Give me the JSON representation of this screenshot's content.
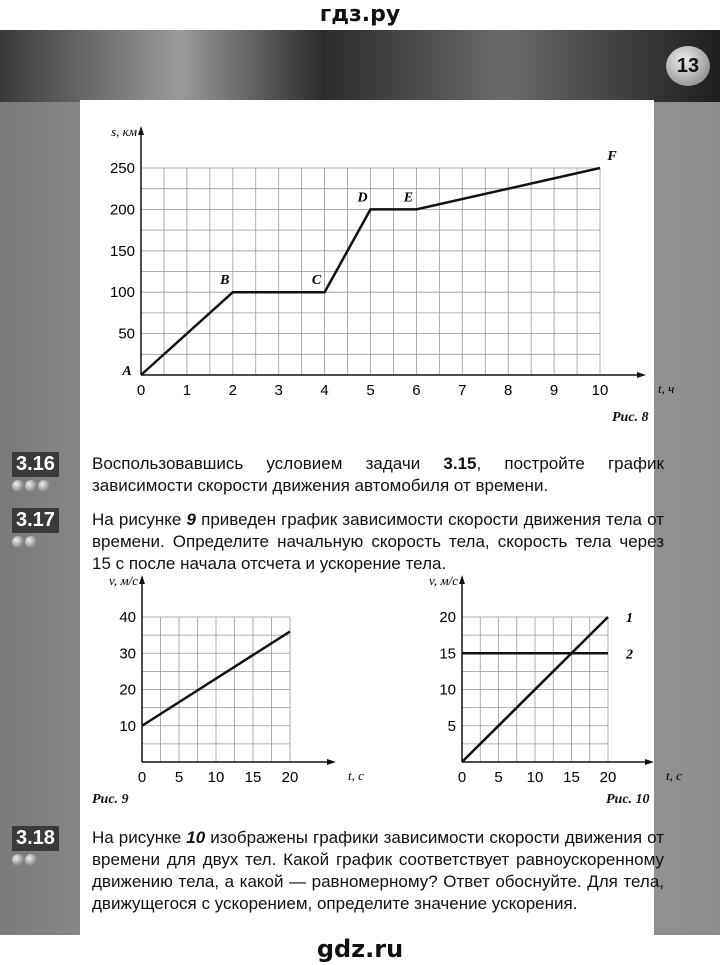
{
  "header": {
    "watermark_top": "гдз.ру",
    "page_number": "13"
  },
  "footer": {
    "watermark_bottom": "gdz.ru"
  },
  "problems": [
    {
      "num": "3.16",
      "dots": 3,
      "text_parts": [
        "Воспользовавшись условием задачи ",
        "3.15",
        ", постройте график зависимости скорости движения автомобиля от времени."
      ]
    },
    {
      "num": "3.17",
      "dots": 2,
      "text_parts": [
        "На рисунке ",
        "9",
        " приведен график зависимости скорости движения тела от времени. Определите начальную скорость тела, скорость тела через 15 с после начала отсчета и ускорение тела."
      ]
    },
    {
      "num": "3.18",
      "dots": 2,
      "text_parts": [
        "На рисунке ",
        "10",
        " изображены графики зависимости скорости движения от времени для двух тел. Какой график соответствует равноускоренному движению тела, а какой — равномерному? Ответ обоснуйте. Для тела, движущегося с ускорением, определите значение ускорения."
      ]
    }
  ],
  "chart_data": [
    {
      "type": "line",
      "caption": "Рис. 8",
      "xlabel": "t, ч",
      "ylabel": "s, км",
      "xlim": [
        0,
        10
      ],
      "ylim": [
        0,
        250
      ],
      "xticks": [
        0,
        1,
        2,
        3,
        4,
        5,
        6,
        7,
        8,
        9,
        10
      ],
      "yticks": [
        50,
        100,
        150,
        200,
        250
      ],
      "grid": true,
      "series": [
        {
          "x": [
            0,
            2,
            4,
            5,
            6,
            10
          ],
          "y": [
            0,
            100,
            100,
            200,
            200,
            250
          ],
          "point_labels": [
            "A",
            "B",
            "C",
            "D",
            "E",
            "F"
          ]
        }
      ]
    },
    {
      "type": "line",
      "caption": "Рис. 9",
      "xlabel": "t, с",
      "ylabel": "v, м/с",
      "xlim": [
        0,
        20
      ],
      "ylim": [
        0,
        40
      ],
      "xticks": [
        0,
        5,
        10,
        15,
        20
      ],
      "yticks": [
        10,
        20,
        30,
        40
      ],
      "grid": true,
      "series": [
        {
          "x": [
            0,
            20
          ],
          "y": [
            10,
            36
          ]
        }
      ]
    },
    {
      "type": "line",
      "caption": "Рис. 10",
      "xlabel": "t, с",
      "ylabel": "v, м/с",
      "xlim": [
        0,
        20
      ],
      "ylim": [
        0,
        20
      ],
      "xticks": [
        0,
        5,
        10,
        15,
        20
      ],
      "yticks": [
        5,
        10,
        15,
        20
      ],
      "grid": true,
      "series": [
        {
          "name": "1",
          "x": [
            0,
            20
          ],
          "y": [
            0,
            20
          ]
        },
        {
          "name": "2",
          "x": [
            0,
            20
          ],
          "y": [
            15,
            15
          ]
        }
      ]
    }
  ]
}
